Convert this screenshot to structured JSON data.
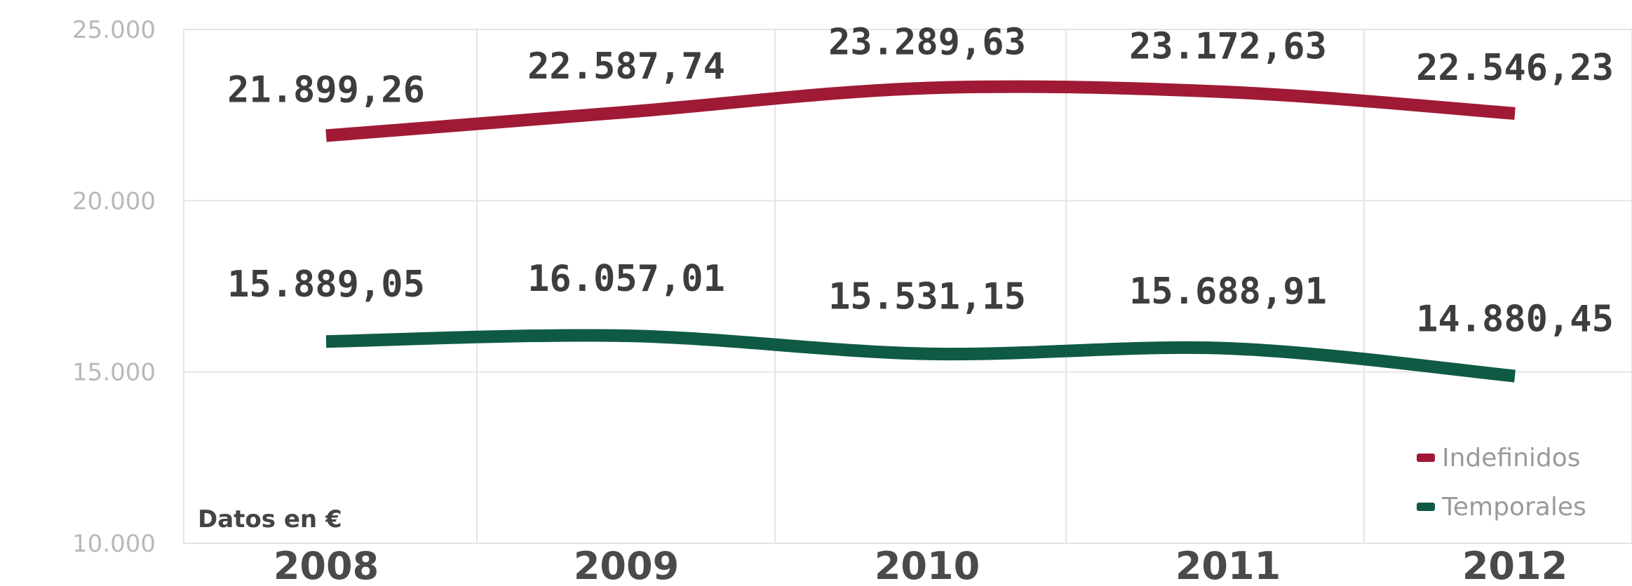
{
  "chart_data": {
    "type": "line",
    "x": [
      "2008",
      "2009",
      "2010",
      "2011",
      "2012"
    ],
    "series": [
      {
        "name": "Indefinidos",
        "color": "#a01a35",
        "values": [
          21899.26,
          22587.74,
          23289.63,
          23172.63,
          22546.23
        ],
        "labels": [
          "21.899,26",
          "22.587,74",
          "23.289,63",
          "23.172,63",
          "22.546,23"
        ]
      },
      {
        "name": "Temporales",
        "color": "#0f5a45",
        "values": [
          15889.05,
          16057.01,
          15531.15,
          15688.91,
          14880.45
        ],
        "labels": [
          "15.889,05",
          "16.057,01",
          "15.531,15",
          "15.688,91",
          "14.880,45"
        ]
      }
    ],
    "y_ticks": [
      10000,
      15000,
      20000,
      25000
    ],
    "y_tick_labels": [
      "10.000",
      "15.000",
      "20.000",
      "25.000"
    ],
    "ylim": [
      10000,
      25000
    ],
    "annotation": "Datos en €",
    "grid": true,
    "legend_position": "bottom-right"
  }
}
